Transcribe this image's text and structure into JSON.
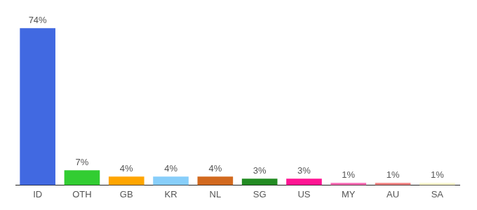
{
  "chart_data": {
    "type": "bar",
    "categories": [
      "ID",
      "OTH",
      "GB",
      "KR",
      "NL",
      "SG",
      "US",
      "MY",
      "AU",
      "SA"
    ],
    "values": [
      74,
      7,
      4,
      4,
      4,
      3,
      3,
      1,
      1,
      1
    ],
    "value_labels": [
      "74%",
      "7%",
      "4%",
      "4%",
      "4%",
      "3%",
      "3%",
      "1%",
      "1%",
      "1%"
    ],
    "colors": [
      "#4169e1",
      "#32cd32",
      "#ffa500",
      "#87cefa",
      "#d2691e",
      "#228b22",
      "#ff1493",
      "#ff69b4",
      "#f08080",
      "#fffacd"
    ],
    "data_labels": true,
    "tick_labels": "x",
    "grid": false
  }
}
